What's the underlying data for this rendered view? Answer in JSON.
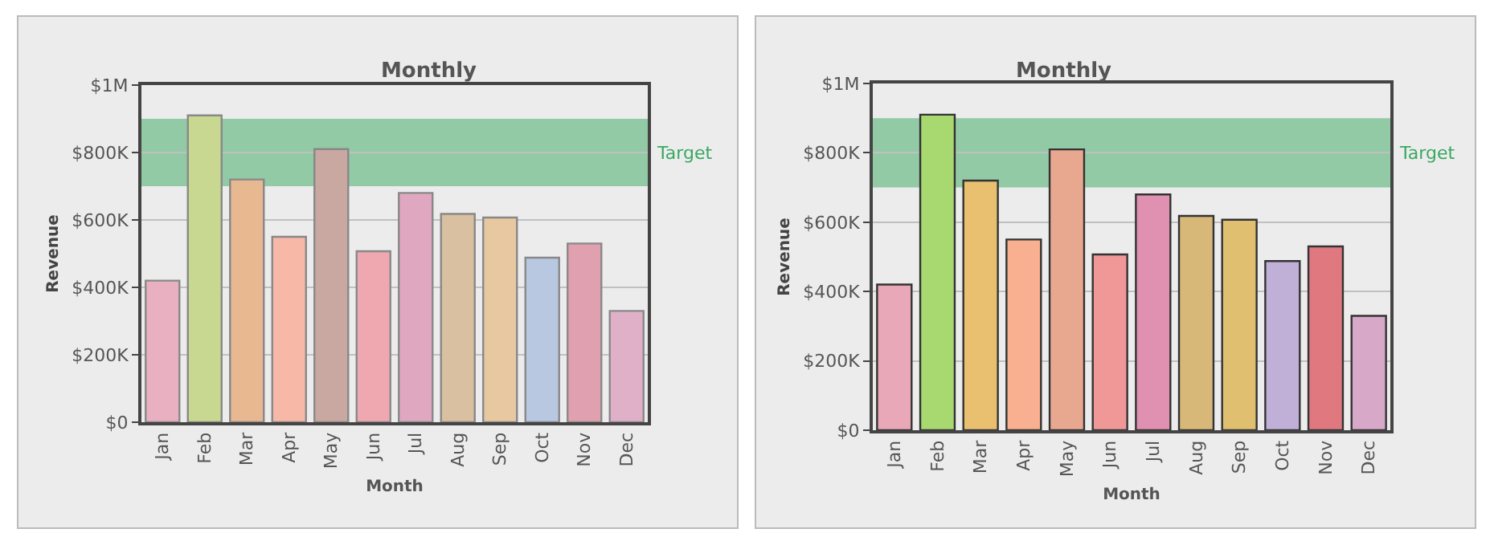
{
  "chart_data": [
    {
      "type": "bar",
      "title": "Monthly",
      "xlabel": "Month",
      "ylabel": "Revenue",
      "categories": [
        "Jan",
        "Feb",
        "Mar",
        "Apr",
        "May",
        "Jun",
        "Jul",
        "Aug",
        "Sep",
        "Oct",
        "Nov",
        "Dec"
      ],
      "values": [
        420000,
        910000,
        720000,
        550000,
        810000,
        507000,
        680000,
        618000,
        607000,
        488000,
        530000,
        330000
      ],
      "colors": [
        "#e8b0c0",
        "#c8d890",
        "#e8b890",
        "#f8b8a8",
        "#c8a8a0",
        "#f0a8b0",
        "#e0a8c0",
        "#d8c0a0",
        "#e8c8a0",
        "#b8c8e0",
        "#e0a0b0",
        "#e0b0c8"
      ],
      "ylim": [
        0,
        1000000
      ],
      "yticks": [
        {
          "value": 0,
          "label": "$0"
        },
        {
          "value": 200000,
          "label": "$200K"
        },
        {
          "value": 400000,
          "label": "$400K"
        },
        {
          "value": 600000,
          "label": "$600K"
        },
        {
          "value": 800000,
          "label": "$800K"
        },
        {
          "value": 1000000,
          "label": "$1M"
        }
      ],
      "bands": [
        {
          "axis": "y",
          "from": 700000,
          "to": 900000,
          "label": "Target",
          "color": "#3aa860"
        }
      ],
      "grid": "y"
    },
    {
      "type": "bar",
      "title": "Monthly",
      "xlabel": "Month",
      "ylabel": "Revenue",
      "categories": [
        "Jan",
        "Feb",
        "Mar",
        "Apr",
        "May",
        "Jun",
        "Jul",
        "Aug",
        "Sep",
        "Oct",
        "Nov",
        "Dec"
      ],
      "values": [
        420000,
        910000,
        720000,
        550000,
        810000,
        507000,
        680000,
        618000,
        607000,
        488000,
        530000,
        330000
      ],
      "colors": [
        "#e8a8b8",
        "#a8d870",
        "#e8c070",
        "#f8b090",
        "#e8a890",
        "#f09898",
        "#e090b0",
        "#d8b878",
        "#e0c070",
        "#c0b0d8",
        "#e07880",
        "#d8a8c8"
      ],
      "ylim": [
        0,
        1000000
      ],
      "yticks": [
        {
          "value": 0,
          "label": "$0"
        },
        {
          "value": 200000,
          "label": "$200K"
        },
        {
          "value": 400000,
          "label": "$400K"
        },
        {
          "value": 600000,
          "label": "$600K"
        },
        {
          "value": 800000,
          "label": "$800K"
        },
        {
          "value": 1000000,
          "label": "$1M"
        }
      ],
      "bands": [
        {
          "axis": "y",
          "from": 700000,
          "to": 900000,
          "label": "Target",
          "color": "#3aa860"
        }
      ],
      "grid": "y"
    }
  ]
}
